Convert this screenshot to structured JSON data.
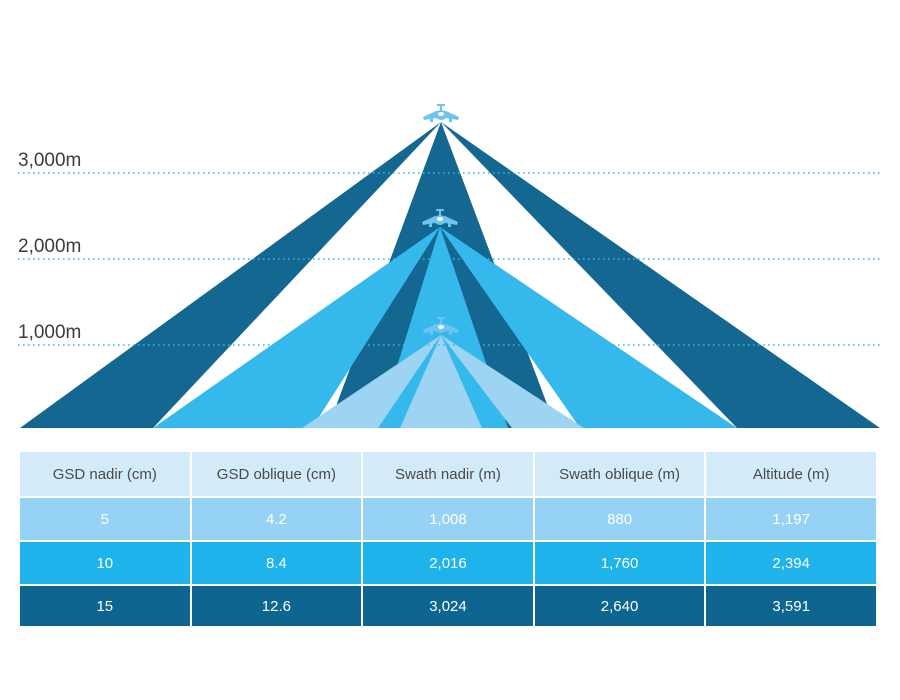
{
  "colors": {
    "dark": "#146791",
    "medium": "#35b8ec",
    "light": "#9dd4f3",
    "plane": "#6cc4f0",
    "dotted_line": "#35b8ec",
    "header_bg": "#d3ebf9"
  },
  "altitude_labels": [
    "3,000m",
    "2,000m",
    "1,000m"
  ],
  "icons": [
    "airplane-icon",
    "airplane-icon",
    "airplane-icon"
  ],
  "table": {
    "headers": [
      "GSD nadir (cm)",
      "GSD oblique (cm)",
      "Swath nadir (m)",
      "Swath oblique (m)",
      "Altitude (m)"
    ],
    "rows": [
      [
        "5",
        "4.2",
        "1,008",
        "880",
        "1,197"
      ],
      [
        "10",
        "8.4",
        "2,016",
        "1,760",
        "2,394"
      ],
      [
        "15",
        "12.6",
        "3,024",
        "2,640",
        "3,591"
      ]
    ]
  }
}
